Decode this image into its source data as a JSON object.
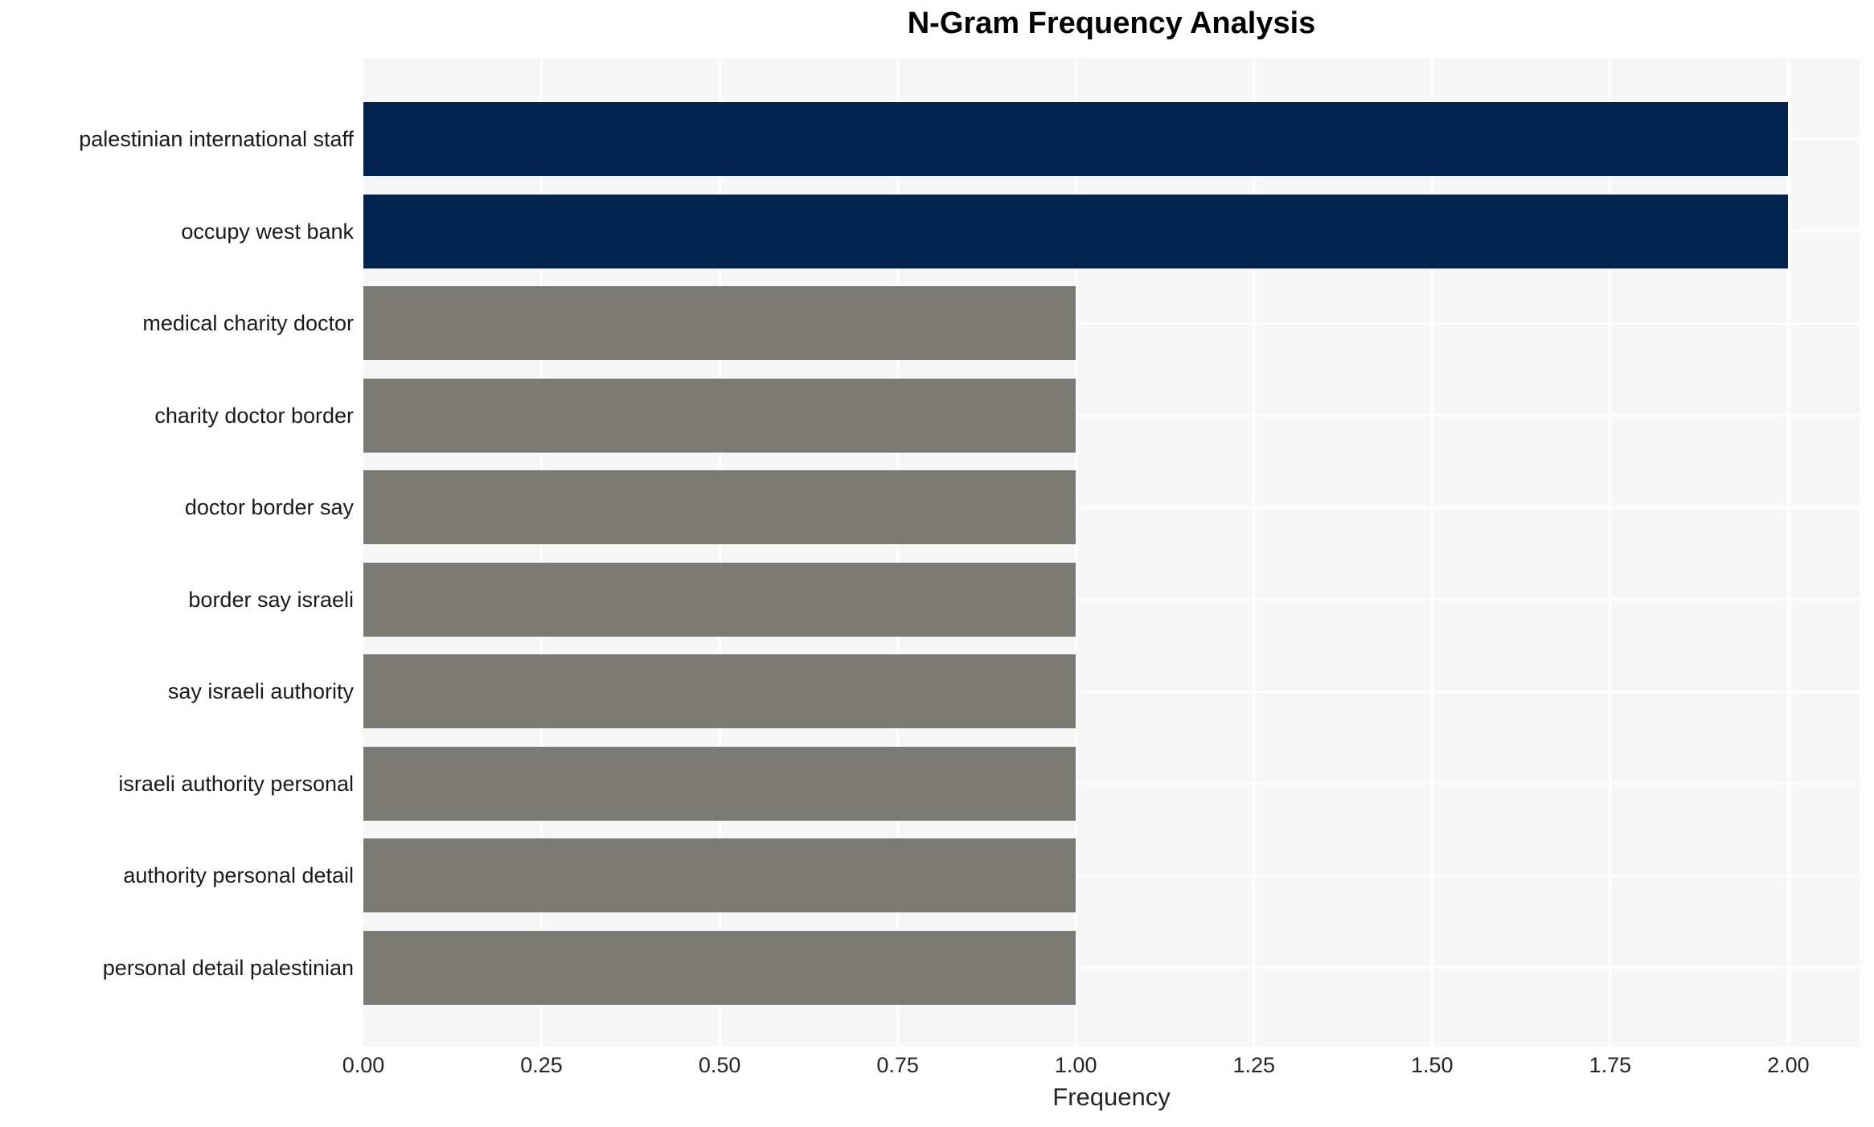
{
  "chart_data": {
    "type": "bar",
    "orientation": "horizontal",
    "title": "N-Gram Frequency Analysis",
    "xlabel": "Frequency",
    "ylabel": "",
    "categories": [
      "palestinian international staff",
      "occupy west bank",
      "medical charity doctor",
      "charity doctor border",
      "doctor border say",
      "border say israeli",
      "say israeli authority",
      "israeli authority personal",
      "authority personal detail",
      "personal detail palestinian"
    ],
    "values": [
      2,
      2,
      1,
      1,
      1,
      1,
      1,
      1,
      1,
      1
    ],
    "bar_colors": [
      "#032450",
      "#032450",
      "#7b7a75",
      "#7b7a75",
      "#7b7a75",
      "#7b7a75",
      "#7b7a75",
      "#7b7a75",
      "#7b7a75",
      "#7b7a75"
    ],
    "xlim": [
      0,
      2.1
    ],
    "xticks": [
      0,
      0.25,
      0.5,
      0.75,
      1.0,
      1.25,
      1.5,
      1.75,
      2.0
    ],
    "xtick_labels": [
      "0.00",
      "0.25",
      "0.50",
      "0.75",
      "1.00",
      "1.25",
      "1.50",
      "1.75",
      "2.00"
    ],
    "grid": true,
    "legend": null,
    "colors": {
      "highlight_bar": "#032450",
      "default_bar": "#7b7a75",
      "plot_background": "#f7f7f7",
      "gridline": "#ffffff",
      "tick_text": "#262626",
      "title_text": "#000000"
    }
  }
}
